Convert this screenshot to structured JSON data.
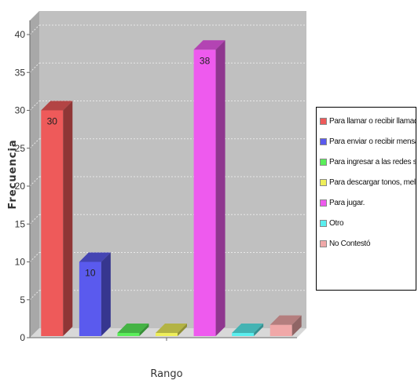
{
  "chart_data": {
    "type": "bar",
    "xlabel": "Rango",
    "ylabel": "Frecuencia",
    "ylim": [
      0,
      40
    ],
    "yticks": [
      0,
      5,
      10,
      15,
      20,
      25,
      30,
      35,
      40
    ],
    "grid": true,
    "legend_position": "right",
    "series": [
      {
        "name": "Para llamar o recibir llamadas",
        "value": 30,
        "label": "30",
        "color": "#ee5a5a"
      },
      {
        "name": "Para enviar o recibir mensajes.",
        "value": 10,
        "label": "10",
        "color": "#5a5aee"
      },
      {
        "name": "Para ingresar a las redes sociales.",
        "value": 0,
        "label": "",
        "color": "#5aee5a"
      },
      {
        "name": "Para descargar tonos, melodías.",
        "value": 0,
        "label": "",
        "color": "#eeee5a"
      },
      {
        "name": "Para jugar.",
        "value": 38,
        "label": "38",
        "color": "#ee5aee"
      },
      {
        "name": "Otro",
        "value": 0,
        "label": "",
        "color": "#5aeeee"
      },
      {
        "name": "No Contestó",
        "value": 1.7,
        "label": "",
        "color": "#f0a8a8"
      }
    ]
  }
}
